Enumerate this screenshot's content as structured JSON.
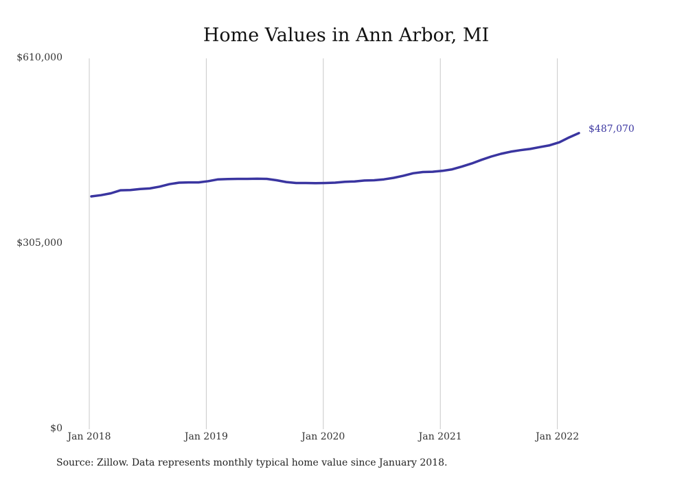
{
  "chart_data": {
    "type": "line",
    "title": "Home Values in Ann Arbor, MI",
    "xlabel": "",
    "ylabel": "",
    "ylim": [
      0,
      610000
    ],
    "y_ticks": [
      {
        "value": 0,
        "label": "$0"
      },
      {
        "value": 305000,
        "label": "$305,000"
      },
      {
        "value": 610000,
        "label": "$610,000"
      }
    ],
    "x_ticks": [
      {
        "value": 0,
        "label": "Jan 2018"
      },
      {
        "value": 12,
        "label": "Jan 2019"
      },
      {
        "value": 24,
        "label": "Jan 2020"
      },
      {
        "value": 36,
        "label": "Jan 2021"
      },
      {
        "value": 48,
        "label": "Jan 2022"
      }
    ],
    "grid": "vertical",
    "color": "#3a35a0",
    "end_label": "$487,070",
    "series": [
      {
        "values": [
          383000,
          385000,
          388000,
          393000,
          393500,
          395000,
          396000,
          399000,
          403000,
          405500,
          406000,
          406000,
          408000,
          411000,
          411500,
          411800,
          411800,
          412000,
          411800,
          409500,
          406500,
          405000,
          405000,
          404800,
          405000,
          405500,
          407000,
          407500,
          409000,
          409500,
          411000,
          413500,
          417000,
          421000,
          423000,
          423500,
          425000,
          427500,
          432000,
          437000,
          443000,
          448500,
          453000,
          456500,
          459000,
          461000,
          464000,
          467000,
          472000,
          480000,
          487070
        ]
      }
    ]
  },
  "source": "Source: Zillow. Data represents monthly typical home value since January 2018."
}
